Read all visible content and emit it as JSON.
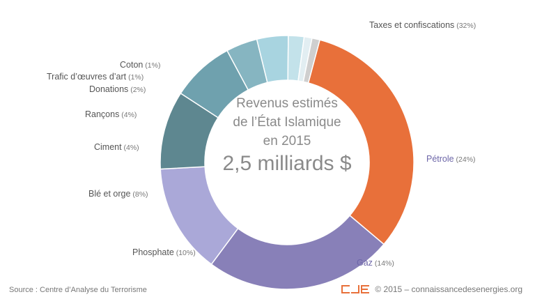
{
  "chart_data": {
    "type": "pie",
    "donut": true,
    "title_lines": [
      "Revenus estimés",
      "de l’État Islamique",
      "en 2015"
    ],
    "total": "2,5 milliards $",
    "slices": [
      {
        "name": "Taxes et confiscations",
        "pct_label": "(32%)",
        "value": 32,
        "color": "#e8703a",
        "label_color": "#555555"
      },
      {
        "name": "Pétrole",
        "pct_label": "(24%)",
        "value": 24,
        "color": "#8880b8",
        "label_color": "#6d66a8"
      },
      {
        "name": "Gaz",
        "pct_label": "(14%)",
        "value": 14,
        "color": "#aaa8d8",
        "label_color": "#6d66a8"
      },
      {
        "name": "Phosphate",
        "pct_label": "(10%)",
        "value": 10,
        "color": "#5e8790",
        "label_color": "#555555"
      },
      {
        "name": "Blé et orge",
        "pct_label": "(8%)",
        "value": 8,
        "color": "#6fa1ae",
        "label_color": "#555555"
      },
      {
        "name": "Ciment",
        "pct_label": "(4%)",
        "value": 4,
        "color": "#86b5c1",
        "label_color": "#555555"
      },
      {
        "name": "Rançons",
        "pct_label": "(4%)",
        "value": 4,
        "color": "#a8d4e0",
        "label_color": "#555555"
      },
      {
        "name": "Donations",
        "pct_label": "(2%)",
        "value": 2,
        "color": "#c3e2ea",
        "label_color": "#555555"
      },
      {
        "name": "Trafic d’œuvres d’art",
        "pct_label": "(1%)",
        "value": 1,
        "color": "#e2eef2",
        "label_color": "#555555"
      },
      {
        "name": "Coton",
        "pct_label": "(1%)",
        "value": 1,
        "color": "#cfcfcf",
        "label_color": "#555555"
      }
    ]
  },
  "footer": {
    "source": "Source : Centre d’Analyse du Terrorisme",
    "copyright": "© 2015 – connaissancedesenergies.org"
  }
}
